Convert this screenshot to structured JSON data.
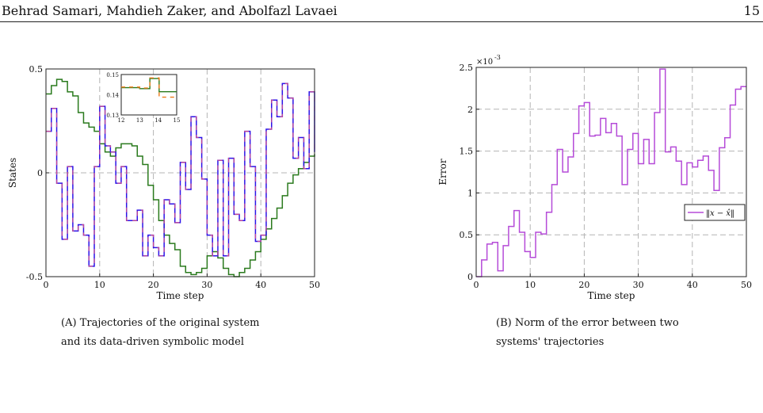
{
  "header": {
    "authors": "Behrad Samari, Mahdieh Zaker, and Abolfazl Lavaei",
    "page_number": "15"
  },
  "captions": {
    "a_label": "(A)",
    "a_text": "Trajectories of the original system and its data-driven symbolic model",
    "b_label": "(B)",
    "b_text": "Norm of the error between two systems' trajectories"
  },
  "chart_data": [
    {
      "type": "line",
      "step": true,
      "xlabel": "Time step",
      "ylabel": "States",
      "xlim": [
        0,
        50
      ],
      "ylim": [
        -0.5,
        0.5
      ],
      "xticks": [
        "0",
        "10",
        "20",
        "30",
        "40",
        "50"
      ],
      "yticks": [
        "-0.5",
        "0",
        "0.5"
      ],
      "grid": true,
      "series": [
        {
          "color": "#2a7a1d",
          "values": [
            0.38,
            0.42,
            0.45,
            0.44,
            0.39,
            0.37,
            0.29,
            0.24,
            0.22,
            0.2,
            0.14,
            0.1,
            0.08,
            0.12,
            0.14,
            0.14,
            0.13,
            0.08,
            0.04,
            -0.06,
            -0.13,
            -0.23,
            -0.3,
            -0.34,
            -0.37,
            -0.45,
            -0.48,
            -0.49,
            -0.48,
            -0.46,
            -0.4,
            -0.38,
            -0.41,
            -0.46,
            -0.49,
            -0.5,
            -0.48,
            -0.46,
            -0.42,
            -0.38,
            -0.32,
            -0.27,
            -0.22,
            -0.17,
            -0.11,
            -0.05,
            -0.01,
            0.02,
            0.05,
            0.08,
            0.09
          ]
        },
        {
          "color": "#2b13e8",
          "dashed_overlay": "#d94f86",
          "values": [
            0.2,
            0.31,
            -0.05,
            -0.32,
            0.03,
            -0.28,
            -0.25,
            -0.3,
            -0.45,
            0.03,
            0.32,
            0.13,
            0.1,
            -0.05,
            0.03,
            -0.23,
            -0.23,
            -0.18,
            -0.4,
            -0.3,
            -0.36,
            -0.4,
            -0.13,
            -0.15,
            -0.24,
            0.05,
            -0.08,
            0.27,
            0.17,
            -0.03,
            -0.3,
            -0.4,
            0.06,
            -0.4,
            0.07,
            -0.2,
            -0.23,
            0.2,
            0.03,
            -0.33,
            -0.3,
            0.21,
            0.35,
            0.27,
            0.43,
            0.36,
            0.07,
            0.17,
            0.02,
            0.39,
            0.1
          ]
        }
      ],
      "inset": {
        "xlim": [
          12,
          15
        ],
        "ylim": [
          0.13,
          0.15
        ],
        "xticks": [
          "12",
          "13",
          "14",
          "15"
        ],
        "yticks": [
          "0.13",
          "0.14",
          "0.15"
        ],
        "series": [
          {
            "color": "#2a7a1d",
            "x": [
              12,
              13,
              13.55,
              14.05,
              15
            ],
            "values": [
              0.1435,
              0.143,
              0.148,
              0.1415,
              0.1415
            ]
          },
          {
            "color": "#ee7a1a",
            "x": [
              12,
              13,
              13.55,
              14.05,
              15
            ],
            "values": [
              0.1438,
              0.1433,
              0.1483,
              0.1388,
              0.1388
            ]
          }
        ]
      }
    },
    {
      "type": "line",
      "step": true,
      "xlabel": "Time step",
      "ylabel": "Error",
      "y_multiplier": "×10",
      "y_multiplier_exp": "-3",
      "xlim": [
        0,
        50
      ],
      "ylim": [
        0,
        2.5
      ],
      "xticks": [
        "0",
        "10",
        "20",
        "30",
        "40",
        "50"
      ],
      "yticks": [
        "0",
        "0.5",
        "1",
        "1.5",
        "2",
        "2.5"
      ],
      "grid": true,
      "legend": {
        "placement": "right",
        "label": "‖x − x̂‖"
      },
      "series": [
        {
          "color": "#b54bd8",
          "values": [
            0.0,
            0.2,
            0.39,
            0.41,
            0.07,
            0.37,
            0.6,
            0.79,
            0.53,
            0.3,
            0.23,
            0.53,
            0.51,
            0.77,
            1.1,
            1.52,
            1.25,
            1.43,
            1.71,
            2.04,
            2.08,
            1.68,
            1.69,
            1.89,
            1.72,
            1.83,
            1.68,
            1.1,
            1.52,
            1.71,
            1.35,
            1.64,
            1.35,
            1.96,
            2.48,
            1.49,
            1.55,
            1.38,
            1.1,
            1.36,
            1.31,
            1.39,
            1.44,
            1.27,
            1.03,
            1.54,
            1.66,
            2.05,
            2.24,
            2.27,
            2.27
          ]
        }
      ]
    }
  ]
}
